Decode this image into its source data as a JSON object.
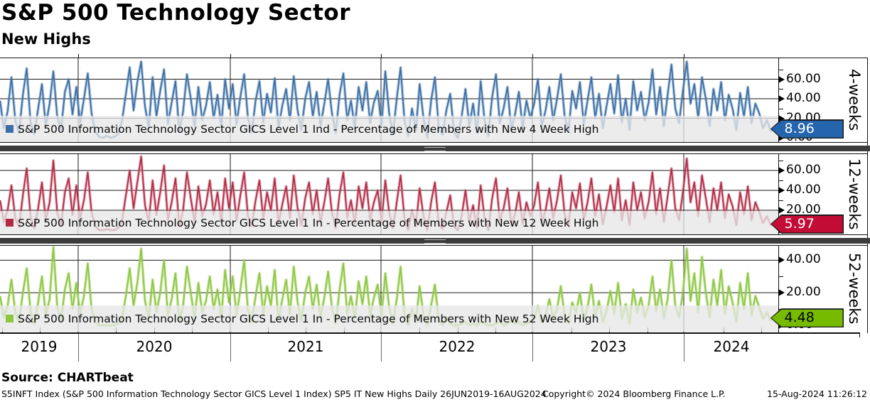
{
  "header": {
    "title": "S&P 500 Technology Sector",
    "subtitle": "New Highs"
  },
  "source_line": "Source: CHARTbeat",
  "footer": {
    "left": "S5INFT Index (S&P 500 Information Technology Sector GICS Level 1 Index) SP5 IT New Highs  Daily 26JUN2019-16AUG2024",
    "center": "Copyright© 2024 Bloomberg Finance L.P.",
    "right": "15-Aug-2024 11:26:12"
  },
  "chart_data": {
    "type": "line",
    "title": "S&P 500 Technology Sector - New Highs",
    "x_start": "26JUN2019",
    "x_end": "16AUG2024",
    "x_tick_years": [
      "2019",
      "2020",
      "2021",
      "2022",
      "2023",
      "2024"
    ],
    "grid": true,
    "panels": [
      {
        "name": "4-weeks",
        "axis_label": "4-weeks",
        "legend": "S&P 500 Information Technology Sector GICS Level 1 Ind - Percentage of Members with New 4 Week High",
        "color": "#3a6ea5",
        "halo_color": "rgba(96,140,185,0.5)",
        "ylim": [
          0,
          80
        ],
        "yticks": [
          {
            "v": 60,
            "label": "60.00"
          },
          {
            "v": 40,
            "label": "40.00"
          },
          {
            "v": 20,
            "label": "20.00"
          },
          {
            "v": 0,
            "label": "0.00"
          }
        ],
        "minor_ticks": [
          10,
          30,
          50,
          70
        ],
        "badge": {
          "label": "8.96",
          "value": 8.96,
          "bg": "#2565ae",
          "text_color": "#ffffff"
        },
        "values": [
          38,
          10,
          27,
          62,
          18,
          5,
          44,
          71,
          16,
          4,
          30,
          55,
          12,
          35,
          68,
          22,
          8,
          47,
          60,
          24,
          52,
          15,
          40,
          66,
          25,
          6,
          1,
          0,
          2,
          0,
          1,
          4,
          18,
          45,
          72,
          28,
          57,
          78,
          32,
          10,
          62,
          22,
          48,
          70,
          14,
          36,
          58,
          6,
          27,
          65,
          40,
          12,
          52,
          18,
          33,
          57,
          20,
          44,
          12,
          60,
          30,
          55,
          14,
          42,
          65,
          20,
          6,
          38,
          58,
          16,
          45,
          26,
          61,
          10,
          33,
          50,
          18,
          63,
          28,
          8,
          40,
          57,
          22,
          47,
          12,
          35,
          60,
          25,
          5,
          44,
          66,
          18,
          38,
          10,
          52,
          28,
          57,
          15,
          36,
          48,
          12,
          68,
          25,
          4,
          40,
          72,
          18,
          2,
          30,
          8,
          55,
          20,
          0,
          38,
          62,
          10,
          3,
          28,
          45,
          6,
          0,
          22,
          50,
          12,
          35,
          5,
          58,
          18,
          2,
          42,
          65,
          15,
          30,
          52,
          8,
          24,
          47,
          10,
          38,
          20,
          35,
          60,
          12,
          28,
          52,
          18,
          40,
          65,
          22,
          6,
          48,
          30,
          57,
          14,
          38,
          62,
          20,
          45,
          10,
          33,
          55,
          25,
          64,
          16,
          40,
          8,
          58,
          28,
          47,
          18,
          36,
          70,
          24,
          52,
          12,
          44,
          75,
          30,
          15,
          48,
          78,
          35,
          55,
          20,
          62,
          40,
          12,
          50,
          28,
          57,
          18,
          44,
          30,
          8,
          46,
          22,
          52,
          15,
          35,
          25,
          10,
          18,
          7,
          12,
          9
        ]
      },
      {
        "name": "12-weeks",
        "axis_label": "12-weeks",
        "legend": "S&P 500 Information Technology Sector GICS Level 1 In - Percentage of Members with New 12 Week High",
        "color": "#b42845",
        "halo_color": "rgba(199,100,118,0.5)",
        "ylim": [
          0,
          75
        ],
        "yticks": [
          {
            "v": 60,
            "label": "60.00"
          },
          {
            "v": 40,
            "label": "40.00"
          },
          {
            "v": 20,
            "label": "20.00"
          },
          {
            "v": 0,
            "label": "0.00"
          }
        ],
        "minor_ticks": [
          10,
          30,
          50,
          70
        ],
        "badge": {
          "label": "5.97",
          "value": 5.97,
          "bg": "#c20b35",
          "text_color": "#ffffff"
        },
        "values": [
          30,
          8,
          20,
          45,
          12,
          3,
          35,
          62,
          14,
          2,
          22,
          48,
          10,
          28,
          70,
          18,
          5,
          38,
          52,
          15,
          45,
          12,
          30,
          58,
          18,
          4,
          0,
          0,
          1,
          0,
          0,
          2,
          10,
          35,
          60,
          22,
          48,
          74,
          25,
          8,
          50,
          15,
          38,
          65,
          10,
          28,
          52,
          4,
          20,
          58,
          32,
          8,
          44,
          14,
          26,
          50,
          16,
          38,
          8,
          52,
          22,
          48,
          10,
          35,
          58,
          14,
          4,
          30,
          50,
          12,
          38,
          20,
          52,
          6,
          26,
          44,
          12,
          55,
          22,
          5,
          32,
          48,
          16,
          40,
          8,
          28,
          52,
          18,
          2,
          36,
          58,
          12,
          30,
          6,
          44,
          22,
          48,
          10,
          28,
          40,
          8,
          50,
          18,
          2,
          28,
          55,
          12,
          0,
          20,
          4,
          42,
          14,
          0,
          28,
          48,
          6,
          1,
          18,
          35,
          3,
          0,
          14,
          40,
          8,
          25,
          2,
          45,
          12,
          0,
          32,
          52,
          10,
          22,
          42,
          5,
          16,
          38,
          6,
          28,
          14,
          25,
          48,
          8,
          20,
          42,
          12,
          30,
          55,
          16,
          4,
          38,
          22,
          47,
          10,
          28,
          52,
          14,
          36,
          6,
          24,
          45,
          18,
          52,
          10,
          30,
          5,
          48,
          20,
          38,
          12,
          28,
          58,
          16,
          42,
          8,
          34,
          62,
          22,
          10,
          38,
          72,
          28,
          48,
          14,
          55,
          32,
          8,
          42,
          20,
          48,
          12,
          36,
          24,
          5,
          38,
          16,
          44,
          10,
          28,
          18,
          7,
          14,
          5,
          9,
          6
        ]
      },
      {
        "name": "52-weeks",
        "axis_label": "52-weeks",
        "legend": "S&P 500 Information Technology Sector GICS Level 1 In - Percentage of Members with New 52 Week High",
        "color": "#8dc63f",
        "halo_color": "rgba(163,212,101,0.55)",
        "ylim": [
          0,
          48
        ],
        "yticks": [
          {
            "v": 40,
            "label": "40.00"
          },
          {
            "v": 20,
            "label": "20.00"
          },
          {
            "v": 0,
            "label": "0.00"
          }
        ],
        "minor_ticks": [
          10,
          30
        ],
        "badge": {
          "label": "4.48",
          "value": 4.48,
          "bg": "#76bb00",
          "text_color": "#000000"
        },
        "values": [
          18,
          5,
          12,
          28,
          8,
          2,
          20,
          35,
          9,
          1,
          14,
          30,
          6,
          16,
          48,
          12,
          3,
          22,
          32,
          10,
          26,
          7,
          18,
          38,
          10,
          2,
          0,
          0,
          0,
          0,
          0,
          1,
          5,
          18,
          35,
          12,
          26,
          47,
          15,
          4,
          28,
          8,
          20,
          40,
          6,
          16,
          32,
          2,
          12,
          36,
          20,
          4,
          26,
          8,
          15,
          30,
          10,
          22,
          5,
          34,
          14,
          30,
          6,
          22,
          40,
          9,
          2,
          18,
          32,
          7,
          24,
          12,
          34,
          3,
          16,
          28,
          7,
          36,
          14,
          3,
          20,
          30,
          10,
          25,
          5,
          17,
          33,
          11,
          1,
          22,
          38,
          7,
          18,
          4,
          27,
          13,
          30,
          6,
          17,
          25,
          5,
          32,
          11,
          1,
          16,
          36,
          7,
          0,
          10,
          2,
          24,
          6,
          0,
          12,
          25,
          3,
          0,
          5,
          1,
          0,
          0,
          1,
          2,
          0,
          1,
          0,
          2,
          1,
          0,
          0,
          1,
          2,
          0,
          1,
          3,
          1,
          2,
          0,
          1,
          2,
          4,
          12,
          2,
          6,
          16,
          4,
          10,
          24,
          6,
          1,
          14,
          8,
          20,
          3,
          11,
          25,
          5,
          15,
          2,
          9,
          21,
          7,
          26,
          4,
          13,
          1,
          22,
          8,
          17,
          5,
          12,
          30,
          9,
          22,
          4,
          16,
          40,
          12,
          5,
          20,
          47,
          15,
          32,
          8,
          42,
          20,
          5,
          28,
          12,
          34,
          7,
          24,
          14,
          2,
          26,
          10,
          32,
          6,
          18,
          11,
          4,
          8,
          3,
          6,
          5
        ]
      }
    ]
  }
}
